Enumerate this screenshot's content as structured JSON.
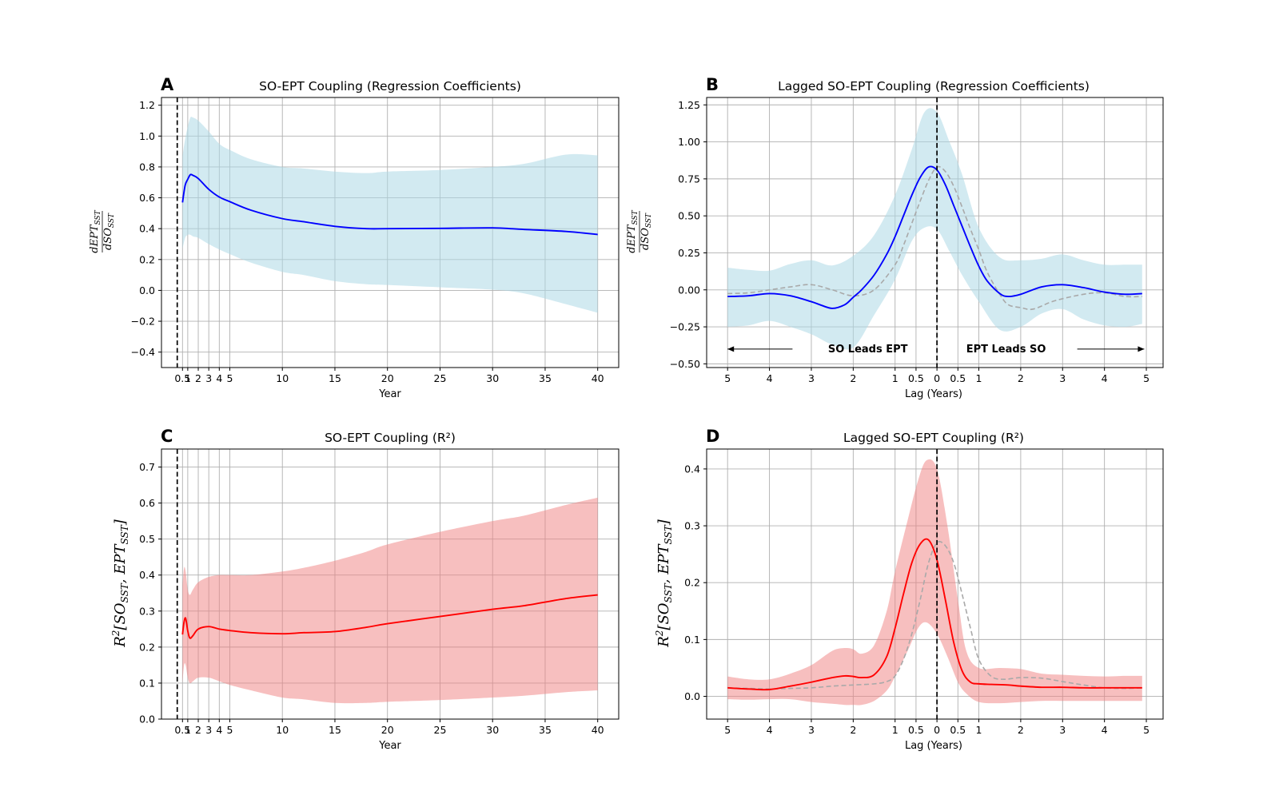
{
  "figure": {
    "background": "#ffffff"
  },
  "colors": {
    "blue_line": "#0000ff",
    "blue_band": "#add8e6",
    "red_line": "#ff0000",
    "red_band": "#f08080",
    "reference_dash": "#a9a9a9",
    "grid": "#b0b0b0",
    "zero_line": "#000000"
  },
  "chart_data": [
    {
      "panel": "A",
      "type": "line",
      "title": "SO-EPT Coupling (Regression Coefficients)",
      "xlabel": "Year",
      "ylabel": "dEPT_SST / dSO_SST",
      "xlim": [
        -1.5,
        42.0
      ],
      "ylim": [
        -0.5,
        1.25
      ],
      "xticks": [
        0.5,
        1,
        2,
        3,
        4,
        5,
        10,
        15,
        20,
        25,
        30,
        35,
        40
      ],
      "xtick_labels": [
        "0.5",
        "1",
        "2",
        "3",
        "4",
        "5",
        "10",
        "15",
        "20",
        "25",
        "30",
        "35",
        "40"
      ],
      "yticks": [
        -0.4,
        -0.2,
        0.0,
        0.2,
        0.4,
        0.6,
        0.8,
        1.0,
        1.2
      ],
      "ytick_labels": [
        "−0.4",
        "−0.2",
        "0.0",
        "0.2",
        "0.4",
        "0.6",
        "0.8",
        "1.0",
        "1.2"
      ],
      "line_color": "#0000ff",
      "band_color": "#add8e6",
      "series": [
        {
          "role": "mean",
          "x": [
            0.5,
            0.75,
            1.0,
            1.25,
            1.5,
            2,
            3,
            4,
            5,
            7,
            10,
            12,
            15,
            18,
            20,
            25,
            30,
            33,
            37,
            40
          ],
          "y": [
            0.57,
            0.68,
            0.72,
            0.75,
            0.745,
            0.725,
            0.655,
            0.605,
            0.575,
            0.52,
            0.465,
            0.445,
            0.415,
            0.4,
            0.4,
            0.402,
            0.405,
            0.395,
            0.382,
            0.362
          ]
        },
        {
          "role": "band",
          "x": [
            0.5,
            0.75,
            1.0,
            1.25,
            1.5,
            2,
            3,
            4,
            5,
            7,
            10,
            12,
            15,
            18,
            20,
            25,
            30,
            33,
            37,
            40
          ],
          "lower": [
            0.27,
            0.34,
            0.36,
            0.36,
            0.35,
            0.34,
            0.3,
            0.265,
            0.235,
            0.18,
            0.12,
            0.1,
            0.06,
            0.04,
            0.035,
            0.02,
            0.005,
            -0.02,
            -0.09,
            -0.145
          ],
          "upper": [
            0.87,
            0.98,
            1.06,
            1.12,
            1.12,
            1.1,
            1.03,
            0.95,
            0.91,
            0.85,
            0.8,
            0.79,
            0.77,
            0.76,
            0.77,
            0.78,
            0.8,
            0.82,
            0.88,
            0.875
          ]
        }
      ]
    },
    {
      "panel": "B",
      "type": "line",
      "title": "Lagged SO-EPT Coupling (Regression Coefficients)",
      "xlabel": "Lag (Years)",
      "ylabel": "dEPT_SST / dSO_SST",
      "xlim": [
        -5.5,
        5.4
      ],
      "ylim": [
        -0.525,
        1.3
      ],
      "xticks": [
        -5,
        -4,
        -3,
        -2,
        -1,
        -0.5,
        0,
        0.5,
        1,
        2,
        3,
        4,
        5
      ],
      "xtick_labels": [
        "5",
        "4",
        "3",
        "2",
        "1",
        "0.5",
        "0",
        "0.5",
        "1",
        "2",
        "3",
        "4",
        "5"
      ],
      "yticks": [
        -0.5,
        -0.25,
        0.0,
        0.25,
        0.5,
        0.75,
        1.0,
        1.25
      ],
      "ytick_labels": [
        "−0.50",
        "−0.25",
        "0.00",
        "0.25",
        "0.50",
        "0.75",
        "1.00",
        "1.25"
      ],
      "line_color": "#0000ff",
      "band_color": "#add8e6",
      "reference_color": "#a9a9a9",
      "annotations": [
        {
          "text": "SO Leads EPT",
          "x": -1.65,
          "y": -0.395
        },
        {
          "text": "EPT Leads SO",
          "x": 1.65,
          "y": -0.395
        }
      ],
      "arrows": [
        {
          "from": [
            -3.45,
            -0.4
          ],
          "to": [
            -5.0,
            -0.4
          ]
        },
        {
          "from": [
            3.35,
            -0.4
          ],
          "to": [
            4.95,
            -0.4
          ]
        }
      ],
      "series": [
        {
          "role": "mean",
          "x": [
            -5,
            -4.5,
            -4,
            -3.5,
            -3,
            -2.8,
            -2.5,
            -2.2,
            -2,
            -1.8,
            -1.5,
            -1.2,
            -1,
            -0.8,
            -0.6,
            -0.4,
            -0.2,
            0,
            0.2,
            0.4,
            0.6,
            0.8,
            1,
            1.2,
            1.5,
            1.7,
            2,
            2.5,
            3,
            3.5,
            4,
            4.5,
            4.9
          ],
          "y": [
            -0.045,
            -0.04,
            -0.025,
            -0.04,
            -0.08,
            -0.1,
            -0.125,
            -0.1,
            -0.05,
            0.0,
            0.1,
            0.24,
            0.36,
            0.5,
            0.64,
            0.76,
            0.83,
            0.81,
            0.71,
            0.57,
            0.43,
            0.29,
            0.16,
            0.06,
            -0.025,
            -0.045,
            -0.03,
            0.02,
            0.035,
            0.015,
            -0.015,
            -0.03,
            -0.025
          ]
        },
        {
          "role": "band",
          "x": [
            -5,
            -4.5,
            -4,
            -3.5,
            -3,
            -2.5,
            -2,
            -1.5,
            -1,
            -0.6,
            -0.3,
            0,
            0.3,
            0.6,
            1,
            1.5,
            2,
            2.5,
            3,
            3.5,
            4,
            4.5,
            4.9
          ],
          "lower": [
            -0.25,
            -0.24,
            -0.21,
            -0.25,
            -0.3,
            -0.37,
            -0.39,
            -0.17,
            0.07,
            0.33,
            0.42,
            0.41,
            0.26,
            0.1,
            -0.08,
            -0.27,
            -0.25,
            -0.16,
            -0.13,
            -0.2,
            -0.24,
            -0.25,
            -0.23
          ],
          "upper": [
            0.15,
            0.135,
            0.13,
            0.175,
            0.2,
            0.165,
            0.23,
            0.37,
            0.64,
            0.95,
            1.2,
            1.2,
            1.0,
            0.78,
            0.42,
            0.22,
            0.2,
            0.21,
            0.24,
            0.2,
            0.17,
            0.17,
            0.17
          ]
        },
        {
          "role": "reference",
          "style": "dashed",
          "x": [
            -5,
            -4.5,
            -4,
            -3.5,
            -3,
            -2.5,
            -2,
            -1.5,
            -1,
            -0.8,
            -0.6,
            -0.4,
            -0.2,
            0,
            0.2,
            0.4,
            0.6,
            0.8,
            1,
            1.2,
            1.5,
            1.7,
            2,
            2.3,
            2.8,
            3.5,
            4,
            4.5,
            4.9
          ],
          "y": [
            -0.025,
            -0.02,
            0.0,
            0.02,
            0.035,
            0.0,
            -0.04,
            0.0,
            0.17,
            0.3,
            0.45,
            0.6,
            0.74,
            0.83,
            0.8,
            0.7,
            0.56,
            0.41,
            0.27,
            0.12,
            -0.03,
            -0.1,
            -0.12,
            -0.13,
            -0.075,
            -0.03,
            -0.02,
            -0.045,
            -0.045
          ]
        }
      ]
    },
    {
      "panel": "C",
      "type": "line",
      "title": "SO-EPT Coupling (R²)",
      "xlabel": "Year",
      "ylabel": "R²[SO_SST, EPT_SST]",
      "xlim": [
        -1.5,
        42.0
      ],
      "ylim": [
        0.0,
        0.75
      ],
      "xticks": [
        0.5,
        1,
        2,
        3,
        4,
        5,
        10,
        15,
        20,
        25,
        30,
        35,
        40
      ],
      "xtick_labels": [
        "0.5",
        "1",
        "2",
        "3",
        "4",
        "5",
        "10",
        "15",
        "20",
        "25",
        "30",
        "35",
        "40"
      ],
      "yticks": [
        0.0,
        0.1,
        0.2,
        0.3,
        0.4,
        0.5,
        0.6,
        0.7
      ],
      "ytick_labels": [
        "0.0",
        "0.1",
        "0.2",
        "0.3",
        "0.4",
        "0.5",
        "0.6",
        "0.7"
      ],
      "line_color": "#ff0000",
      "band_color": "#f08080",
      "series": [
        {
          "role": "mean",
          "x": [
            0.5,
            0.65,
            0.8,
            1.0,
            1.2,
            1.5,
            2,
            3,
            4,
            5,
            7,
            10,
            12,
            15,
            18,
            20,
            25,
            30,
            33,
            37,
            40
          ],
          "y": [
            0.235,
            0.27,
            0.28,
            0.245,
            0.225,
            0.232,
            0.25,
            0.257,
            0.25,
            0.246,
            0.24,
            0.237,
            0.24,
            0.243,
            0.255,
            0.265,
            0.285,
            0.305,
            0.315,
            0.335,
            0.345
          ]
        },
        {
          "role": "band",
          "x": [
            0.5,
            0.65,
            0.8,
            1.0,
            1.2,
            1.5,
            2,
            3,
            4,
            5,
            7,
            10,
            12,
            15,
            18,
            20,
            25,
            30,
            33,
            37,
            40
          ],
          "lower": [
            0.1,
            0.15,
            0.15,
            0.115,
            0.1,
            0.105,
            0.115,
            0.115,
            0.105,
            0.095,
            0.08,
            0.06,
            0.055,
            0.045,
            0.045,
            0.048,
            0.053,
            0.06,
            0.065,
            0.075,
            0.08
          ],
          "upper": [
            0.37,
            0.42,
            0.41,
            0.36,
            0.345,
            0.36,
            0.38,
            0.395,
            0.4,
            0.4,
            0.4,
            0.41,
            0.42,
            0.44,
            0.465,
            0.485,
            0.52,
            0.55,
            0.565,
            0.595,
            0.615
          ]
        }
      ]
    },
    {
      "panel": "D",
      "type": "line",
      "title": "Lagged SO-EPT Coupling (R²)",
      "xlabel": "Lag (Years)",
      "ylabel": "R²[SO_SST, EPT_SST]",
      "xlim": [
        -5.5,
        5.4
      ],
      "ylim": [
        -0.04,
        0.435
      ],
      "xticks": [
        -5,
        -4,
        -3,
        -2,
        -1,
        -0.5,
        0,
        0.5,
        1,
        2,
        3,
        4,
        5
      ],
      "xtick_labels": [
        "5",
        "4",
        "3",
        "2",
        "1",
        "0.5",
        "0",
        "0.5",
        "1",
        "2",
        "3",
        "4",
        "5"
      ],
      "yticks": [
        0.0,
        0.1,
        0.2,
        0.3,
        0.4
      ],
      "ytick_labels": [
        "0.0",
        "0.1",
        "0.2",
        "0.3",
        "0.4"
      ],
      "line_color": "#ff0000",
      "band_color": "#f08080",
      "reference_color": "#a9a9a9",
      "series": [
        {
          "role": "mean",
          "x": [
            -5,
            -4.5,
            -4,
            -3.5,
            -3,
            -2.5,
            -2.2,
            -2,
            -1.8,
            -1.5,
            -1.2,
            -1,
            -0.8,
            -0.6,
            -0.4,
            -0.2,
            0,
            0.2,
            0.4,
            0.6,
            0.8,
            1,
            1.3,
            1.7,
            2,
            2.5,
            3,
            3.5,
            4,
            4.5,
            4.9
          ],
          "y": [
            0.015,
            0.013,
            0.012,
            0.018,
            0.025,
            0.033,
            0.036,
            0.035,
            0.033,
            0.038,
            0.07,
            0.12,
            0.18,
            0.235,
            0.268,
            0.275,
            0.24,
            0.17,
            0.095,
            0.045,
            0.025,
            0.022,
            0.021,
            0.02,
            0.018,
            0.016,
            0.016,
            0.015,
            0.015,
            0.015,
            0.015
          ]
        },
        {
          "role": "band",
          "x": [
            -5,
            -4.5,
            -4,
            -3.5,
            -3,
            -2.5,
            -2.2,
            -2,
            -1.8,
            -1.5,
            -1.2,
            -1,
            -0.7,
            -0.45,
            -0.25,
            0,
            0.25,
            0.5,
            0.7,
            1,
            1.5,
            2,
            2.5,
            3,
            3.5,
            4,
            4.5,
            4.9
          ],
          "lower": [
            -0.005,
            -0.006,
            -0.005,
            -0.005,
            -0.01,
            -0.013,
            -0.015,
            -0.015,
            -0.015,
            -0.008,
            0.01,
            0.035,
            0.08,
            0.12,
            0.13,
            0.11,
            0.07,
            0.025,
            0.005,
            -0.01,
            -0.012,
            -0.01,
            -0.008,
            -0.008,
            -0.008,
            -0.008,
            -0.008,
            -0.008
          ],
          "upper": [
            0.035,
            0.03,
            0.03,
            0.04,
            0.055,
            0.08,
            0.085,
            0.083,
            0.075,
            0.09,
            0.15,
            0.22,
            0.31,
            0.38,
            0.415,
            0.4,
            0.3,
            0.17,
            0.08,
            0.05,
            0.05,
            0.048,
            0.04,
            0.038,
            0.036,
            0.035,
            0.036,
            0.036
          ]
        },
        {
          "role": "reference",
          "style": "dashed",
          "x": [
            -5,
            -4.5,
            -4,
            -3.5,
            -3,
            -2.5,
            -2,
            -1.5,
            -1.2,
            -1,
            -0.8,
            -0.6,
            -0.4,
            -0.2,
            0,
            0.2,
            0.4,
            0.6,
            0.8,
            1,
            1.3,
            1.6,
            2,
            2.5,
            3,
            3.5,
            4,
            4.5,
            4.9
          ],
          "y": [
            0.015,
            0.014,
            0.013,
            0.014,
            0.015,
            0.018,
            0.02,
            0.022,
            0.026,
            0.036,
            0.065,
            0.11,
            0.17,
            0.235,
            0.27,
            0.265,
            0.235,
            0.18,
            0.12,
            0.065,
            0.035,
            0.03,
            0.033,
            0.032,
            0.026,
            0.02,
            0.015,
            0.014,
            0.015
          ]
        }
      ]
    }
  ]
}
